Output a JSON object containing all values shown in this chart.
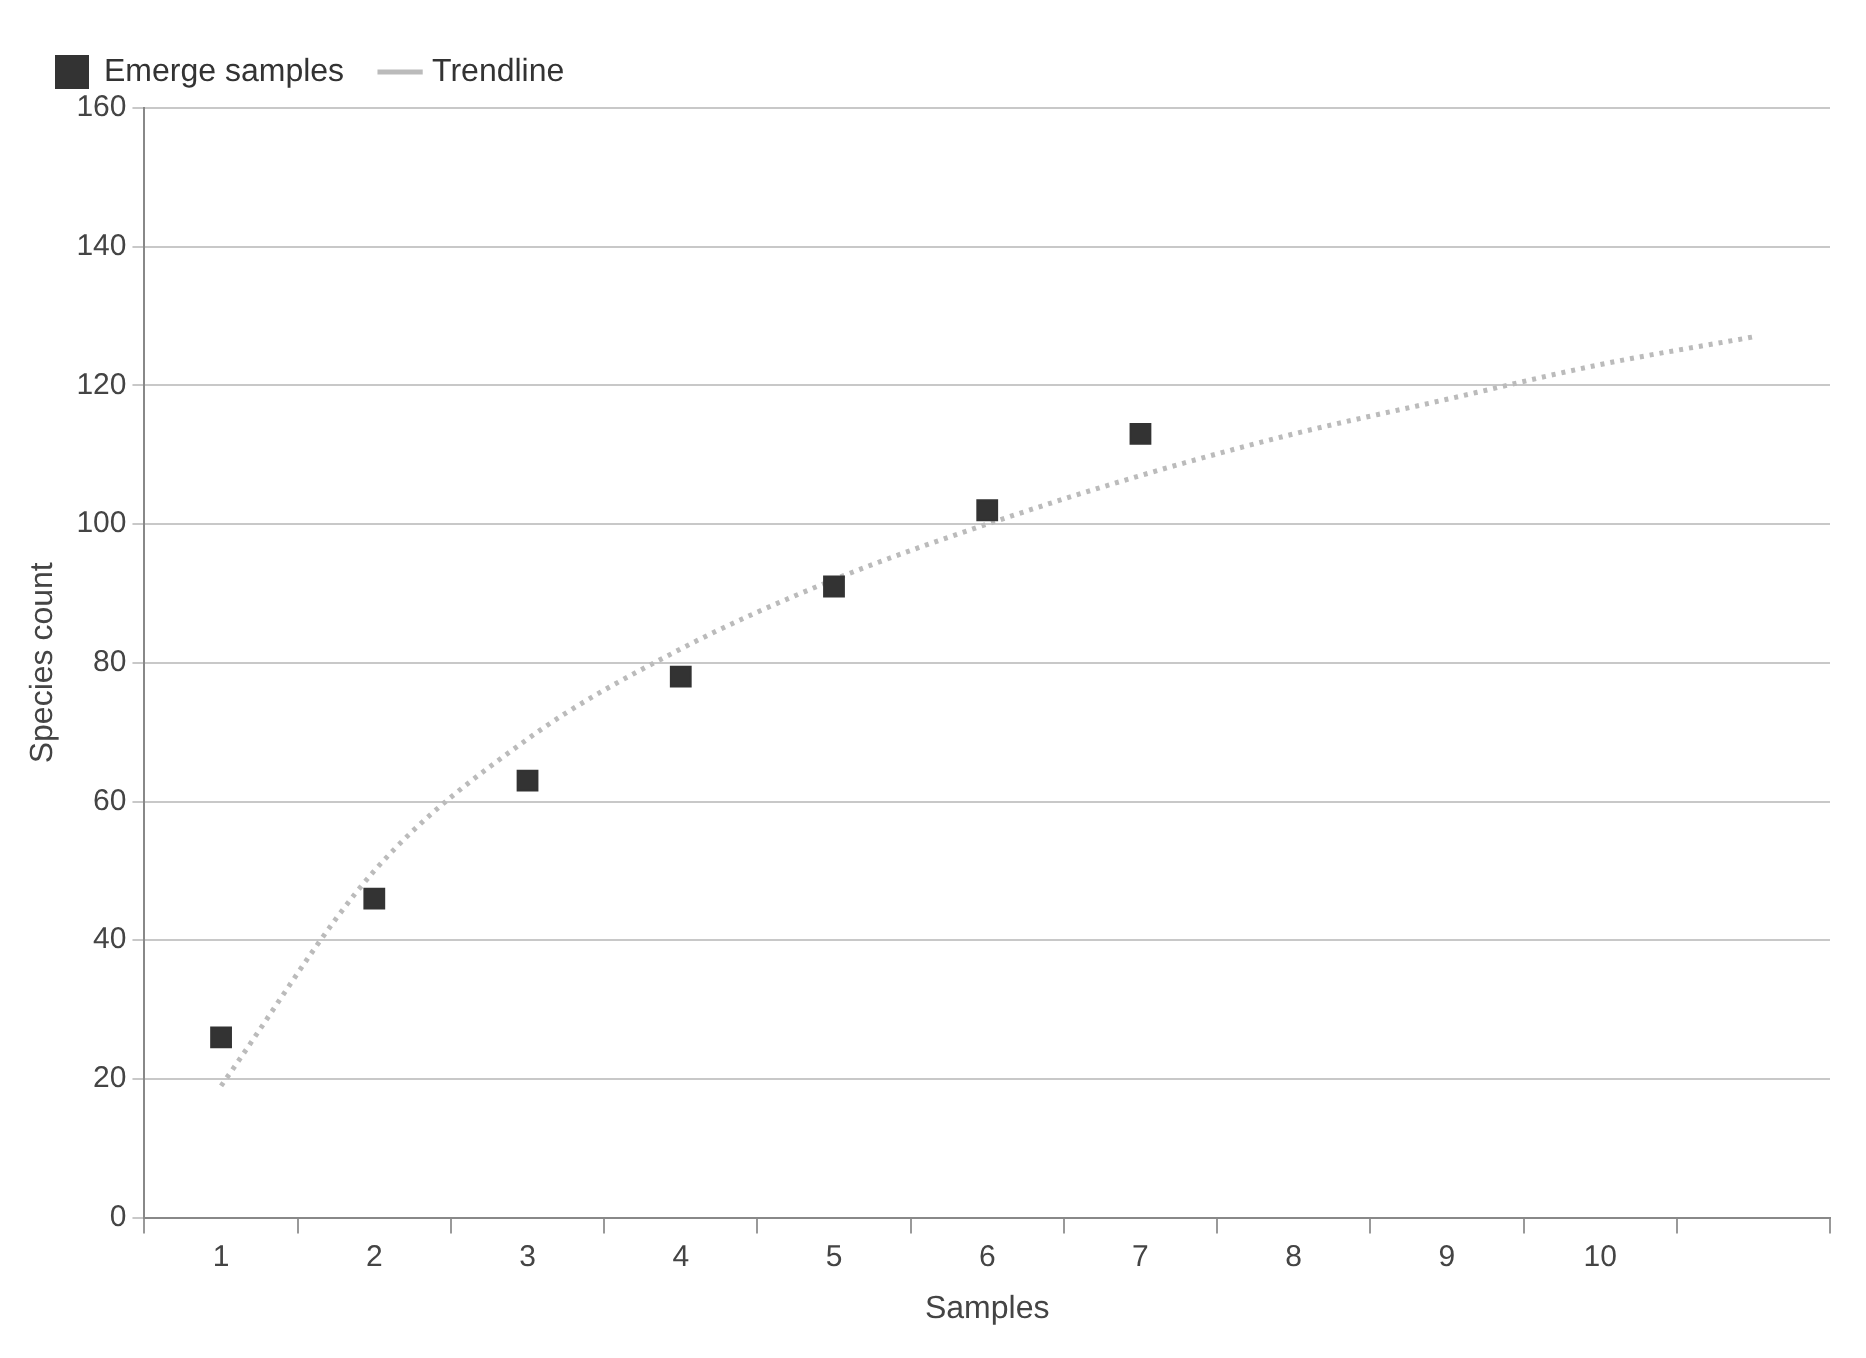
{
  "chart_data": {
    "type": "scatter",
    "xlabel": "Samples",
    "ylabel": "Species count",
    "categories": [
      "1",
      "2",
      "3",
      "4",
      "5",
      "6",
      "7",
      "8",
      "9",
      "10",
      null
    ],
    "series": [
      {
        "name": "Emerge samples",
        "color": "#333333",
        "marker": "square",
        "values": [
          26,
          46,
          63,
          78,
          91,
          102,
          113,
          null,
          null,
          null,
          null
        ]
      },
      {
        "name": "Trendline",
        "type": "line",
        "color": "#bbbbbb",
        "line_style": "dotted",
        "marker": "none",
        "values": [
          19,
          50,
          69,
          82,
          92,
          100,
          107,
          113,
          118,
          123,
          127
        ]
      }
    ],
    "ylim": [
      0,
      160
    ],
    "yticks": [
      0,
      20,
      40,
      60,
      80,
      100,
      120,
      140,
      160
    ],
    "grid": "y",
    "legend": "top"
  }
}
